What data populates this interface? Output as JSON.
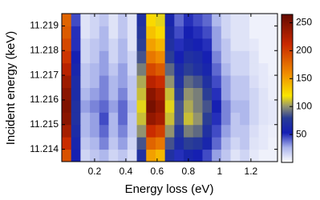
{
  "chart_data": {
    "type": "heatmap",
    "xlabel": "Energy loss (eV)",
    "ylabel": "Incident energy (keV)",
    "x": [
      0.02,
      0.08,
      0.14,
      0.2,
      0.26,
      0.32,
      0.38,
      0.44,
      0.5,
      0.56,
      0.62,
      0.68,
      0.74,
      0.8,
      0.86,
      0.92,
      0.98,
      1.04,
      1.1,
      1.16,
      1.22,
      1.28,
      1.34
    ],
    "y": [
      11.21375,
      11.21425,
      11.21475,
      11.21525,
      11.21575,
      11.21625,
      11.21675,
      11.21725,
      11.21775,
      11.21825,
      11.21875,
      11.21925
    ],
    "values": [
      [
        190,
        55,
        15,
        20,
        25,
        15,
        20,
        12,
        70,
        150,
        140,
        70,
        50,
        60,
        55,
        45,
        30,
        20,
        10,
        15,
        8,
        5,
        5
      ],
      [
        210,
        60,
        20,
        25,
        35,
        20,
        30,
        15,
        85,
        180,
        170,
        85,
        65,
        80,
        75,
        60,
        40,
        25,
        15,
        20,
        10,
        8,
        5
      ],
      [
        230,
        65,
        25,
        30,
        40,
        25,
        35,
        20,
        100,
        210,
        200,
        100,
        75,
        95,
        90,
        70,
        45,
        30,
        20,
        20,
        12,
        8,
        6
      ],
      [
        245,
        70,
        25,
        30,
        45,
        25,
        40,
        20,
        110,
        240,
        230,
        110,
        85,
        110,
        100,
        80,
        50,
        35,
        20,
        25,
        15,
        10,
        8
      ],
      [
        250,
        70,
        30,
        35,
        40,
        30,
        40,
        25,
        115,
        255,
        240,
        115,
        85,
        105,
        95,
        85,
        55,
        35,
        25,
        25,
        15,
        10,
        8
      ],
      [
        245,
        65,
        25,
        30,
        35,
        25,
        35,
        20,
        110,
        245,
        230,
        110,
        80,
        100,
        95,
        80,
        50,
        30,
        20,
        20,
        15,
        10,
        6
      ],
      [
        235,
        65,
        20,
        25,
        35,
        25,
        30,
        20,
        105,
        220,
        210,
        100,
        70,
        90,
        85,
        70,
        45,
        30,
        20,
        20,
        12,
        8,
        6
      ],
      [
        220,
        60,
        20,
        25,
        30,
        20,
        30,
        15,
        95,
        195,
        185,
        90,
        65,
        80,
        70,
        60,
        40,
        25,
        15,
        15,
        10,
        8,
        5
      ],
      [
        205,
        55,
        15,
        20,
        30,
        15,
        25,
        15,
        85,
        170,
        160,
        80,
        55,
        70,
        65,
        55,
        35,
        20,
        15,
        15,
        10,
        5,
        5
      ],
      [
        195,
        50,
        15,
        20,
        25,
        15,
        25,
        10,
        80,
        150,
        140,
        70,
        50,
        60,
        55,
        50,
        30,
        20,
        10,
        10,
        8,
        5,
        5
      ],
      [
        185,
        50,
        10,
        15,
        25,
        10,
        20,
        10,
        75,
        135,
        125,
        65,
        45,
        55,
        50,
        45,
        30,
        15,
        10,
        10,
        5,
        5,
        5
      ],
      [
        180,
        45,
        10,
        15,
        20,
        10,
        20,
        10,
        70,
        125,
        115,
        60,
        40,
        50,
        45,
        40,
        25,
        15,
        10,
        10,
        5,
        5,
        5
      ]
    ],
    "xlim": [
      -0.01,
      1.37
    ],
    "ylim": [
      11.2135,
      11.2195
    ],
    "xticks": [
      0.2,
      0.4,
      0.6,
      0.8,
      1,
      1.2
    ],
    "yticks": [
      11.214,
      11.215,
      11.216,
      11.217,
      11.218,
      11.219
    ],
    "zlim": [
      0,
      265
    ],
    "zticks": [
      50,
      100,
      150,
      200,
      250
    ]
  }
}
